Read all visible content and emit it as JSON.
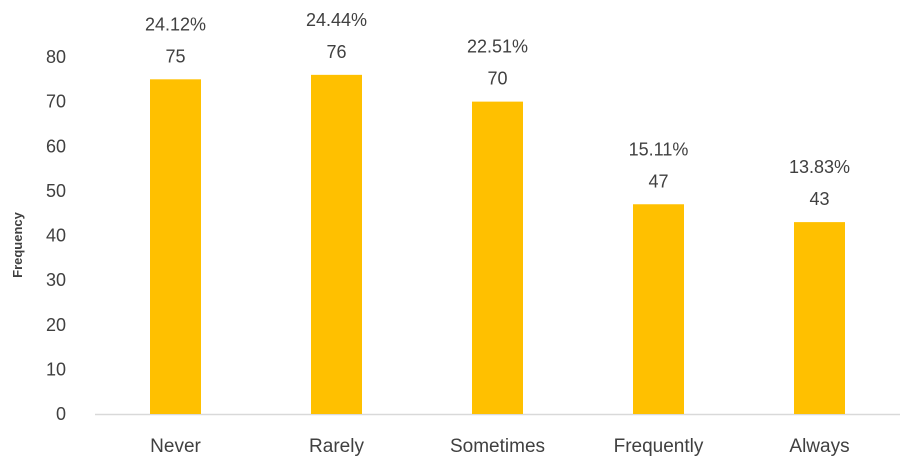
{
  "chart_data": {
    "type": "bar",
    "title": "",
    "xlabel": "",
    "ylabel": "Frequency",
    "ylim": [
      0,
      80
    ],
    "yticks": [
      0,
      10,
      20,
      30,
      40,
      50,
      60,
      70,
      80
    ],
    "grid": false,
    "legend": "none",
    "categories": [
      "Never",
      "Rarely",
      "Sometimes",
      "Frequently",
      "Always"
    ],
    "values": [
      75,
      76,
      70,
      47,
      43
    ],
    "percent_labels": [
      "24.12%",
      "24.44%",
      "22.51%",
      "15.11%",
      "13.83%"
    ],
    "bar_color": "#FFC000",
    "axis_color": "#D9D9D9",
    "text_color": "#404040"
  }
}
